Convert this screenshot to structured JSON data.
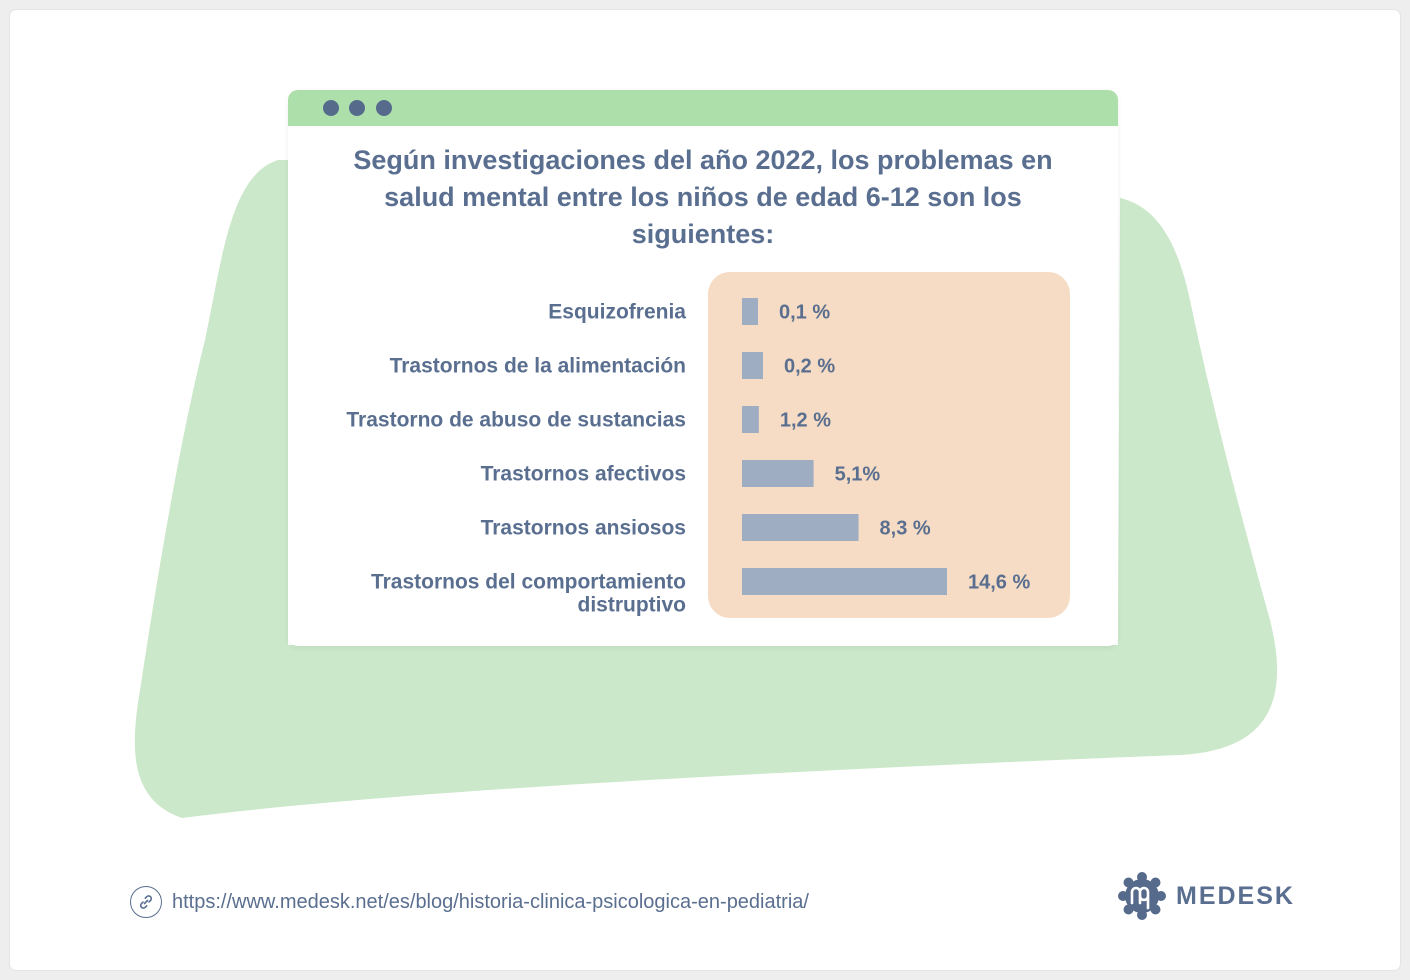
{
  "chart_data": {
    "type": "bar",
    "orientation": "horizontal",
    "title": "Según investigaciones del año 2022, los problemas en salud mental entre los niños de edad 6-12 son los siguientes:",
    "categories": [
      "Esquizofrenia",
      "Trastornos de la alimentación",
      "Trastorno de abuso de sustancias",
      "Trastornos afectivos",
      "Trastornos ansiosos",
      "Trastornos del comportamiento distruptivo"
    ],
    "values": [
      0.1,
      0.2,
      1.2,
      5.1,
      8.3,
      14.6
    ],
    "data_labels": [
      "0,1 %",
      "0,2 %",
      "1,2 %",
      "5,1%",
      "8,3 %",
      "14,6 %"
    ],
    "xlim": [
      0,
      14.6
    ],
    "unit": "%",
    "grid": false,
    "legend": "none",
    "colors": {
      "bar": "#9eadc2",
      "text": "#5a6f90",
      "panel": "#f6dcc4",
      "blob": "#cce8ca",
      "titlebar": "#addfaa"
    }
  },
  "footer": {
    "url": "https://www.medesk.net/es/blog/historia-clinica-psicologica-en-pediatria/",
    "link_icon": "link-icon",
    "brand_name": "MEDESK",
    "brand_logo": "medesk-logo-icon"
  }
}
